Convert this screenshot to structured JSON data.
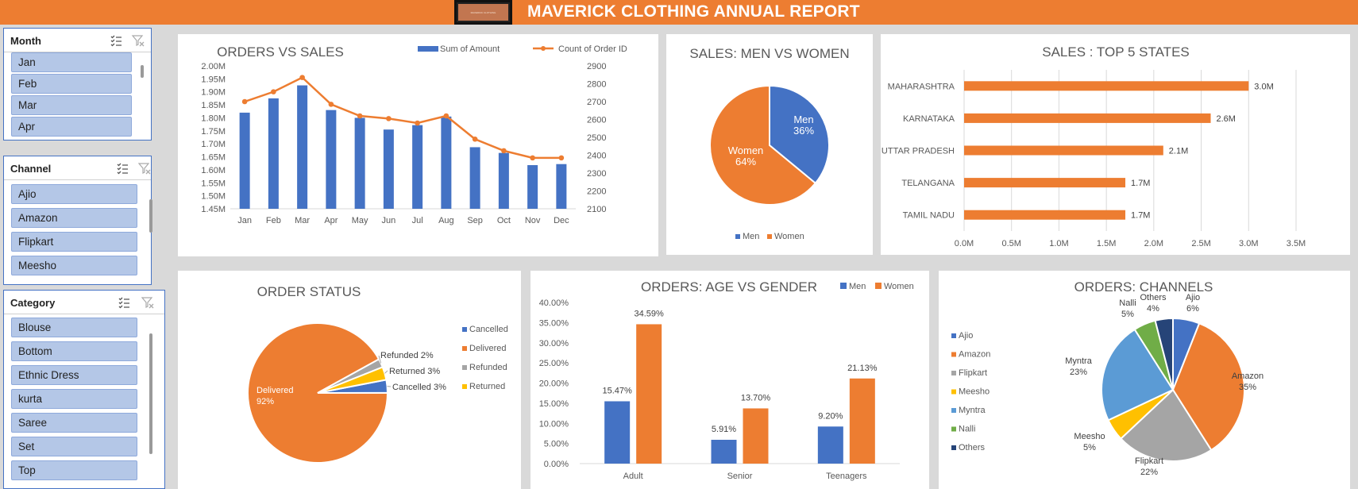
{
  "header": {
    "title": "MAVERICK CLOTHING ANNUAL REPORT",
    "logo_text": "MAVERICK CLOTHING"
  },
  "slicers": [
    {
      "title": "Month",
      "items": [
        "Jan",
        "Feb",
        "Mar",
        "Apr"
      ]
    },
    {
      "title": "Channel",
      "items": [
        "Ajio",
        "Amazon",
        "Flipkart",
        "Meesho"
      ]
    },
    {
      "title": "Category",
      "items": [
        "Blouse",
        "Bottom",
        "Ethnic Dress",
        "kurta",
        "Saree",
        "Set",
        "Top"
      ]
    }
  ],
  "icons": {
    "multi_select": "multi-select-icon",
    "clear_filter": "clear-filter-icon"
  },
  "colors": {
    "blue": "#4472c4",
    "orange": "#ed7d31",
    "gray": "#a5a5a5",
    "yellow": "#ffc000",
    "light_blue": "#5b9bd5",
    "green": "#70ad47",
    "navy": "#264478",
    "banner": "#ed7d31"
  },
  "chart_data": [
    {
      "type": "bar",
      "title": "ORDERS VS SALES",
      "categories": [
        "Jan",
        "Feb",
        "Mar",
        "Apr",
        "May",
        "Jun",
        "Jul",
        "Aug",
        "Sep",
        "Oct",
        "Nov",
        "Dec"
      ],
      "series": [
        {
          "name": "Sum of Amount",
          "type": "bar",
          "axis": "left",
          "values": [
            1820000,
            1875000,
            1925000,
            1830000,
            1800000,
            1755000,
            1772000,
            1805000,
            1687000,
            1665000,
            1618000,
            1622000
          ]
        },
        {
          "name": "Count of Order ID",
          "type": "line",
          "axis": "right",
          "values": [
            2700,
            2755,
            2835,
            2685,
            2620,
            2605,
            2580,
            2620,
            2490,
            2425,
            2385,
            2385
          ]
        }
      ],
      "y_ticks": [
        "2.00M",
        "1.95M",
        "1.90M",
        "1.85M",
        "1.80M",
        "1.75M",
        "1.70M",
        "1.65M",
        "1.60M",
        "1.55M",
        "1.50M",
        "1.45M"
      ],
      "y2_ticks": [
        "2900",
        "2800",
        "2700",
        "2600",
        "2500",
        "2400",
        "2300",
        "2200",
        "2100"
      ],
      "ylim": [
        1450000,
        2000000
      ],
      "y2lim": [
        2100,
        2900
      ],
      "legend": "top"
    },
    {
      "type": "pie",
      "title": "SALES: MEN VS WOMEN",
      "slices": [
        {
          "name": "Men",
          "pct": 36,
          "label": "Men\n36%"
        },
        {
          "name": "Women",
          "pct": 64,
          "label": "Women\n64%"
        }
      ],
      "legend": "bottom"
    },
    {
      "type": "bar",
      "orientation": "horizontal",
      "title": "SALES : TOP 5 STATES",
      "categories": [
        "MAHARASHTRA",
        "KARNATAKA",
        "UTTAR PRADESH",
        "TELANGANA",
        "TAMIL NADU"
      ],
      "values": [
        3.0,
        2.6,
        2.1,
        1.7,
        1.7
      ],
      "data_labels": [
        "3.0M",
        "2.6M",
        "2.1M",
        "1.7M",
        "1.7M"
      ],
      "x_ticks": [
        "0.0M",
        "0.5M",
        "1.0M",
        "1.5M",
        "2.0M",
        "2.5M",
        "3.0M",
        "3.5M"
      ],
      "xlim": [
        0,
        3.5
      ]
    },
    {
      "type": "pie",
      "title": "ORDER STATUS",
      "slices": [
        {
          "name": "Cancelled",
          "pct": 3,
          "label": "Cancelled 3%"
        },
        {
          "name": "Delivered",
          "pct": 92,
          "label": "Delivered\n92%"
        },
        {
          "name": "Refunded",
          "pct": 2,
          "label": "Refunded 2%"
        },
        {
          "name": "Returned",
          "pct": 3,
          "label": "Returned 3%"
        }
      ],
      "legend": "right"
    },
    {
      "type": "bar",
      "title": "ORDERS: AGE VS GENDER",
      "categories": [
        "Adult",
        "Senior",
        "Teenagers"
      ],
      "series": [
        {
          "name": "Men",
          "values": [
            15.47,
            5.91,
            9.2
          ],
          "labels": [
            "15.47%",
            "5.91%",
            "9.20%"
          ]
        },
        {
          "name": "Women",
          "values": [
            34.59,
            13.7,
            21.13
          ],
          "labels": [
            "34.59%",
            "13.70%",
            "21.13%"
          ]
        }
      ],
      "y_ticks": [
        "40.00%",
        "35.00%",
        "30.00%",
        "25.00%",
        "20.00%",
        "15.00%",
        "10.00%",
        "5.00%",
        "0.00%"
      ],
      "ylim": [
        0,
        40
      ],
      "legend": "top-right"
    },
    {
      "type": "pie",
      "title": "ORDERS: CHANNELS",
      "slices": [
        {
          "name": "Ajio",
          "pct": 6,
          "label": "Ajio\n6%"
        },
        {
          "name": "Amazon",
          "pct": 35,
          "label": "Amazon\n35%"
        },
        {
          "name": "Flipkart",
          "pct": 22,
          "label": "Flipkart\n22%"
        },
        {
          "name": "Meesho",
          "pct": 5,
          "label": "Meesho\n5%"
        },
        {
          "name": "Myntra",
          "pct": 23,
          "label": "Myntra\n23%"
        },
        {
          "name": "Nalli",
          "pct": 5,
          "label": "Nalli\n5%"
        },
        {
          "name": "Others",
          "pct": 4,
          "label": "Others\n4%"
        }
      ],
      "legend": "left"
    }
  ]
}
